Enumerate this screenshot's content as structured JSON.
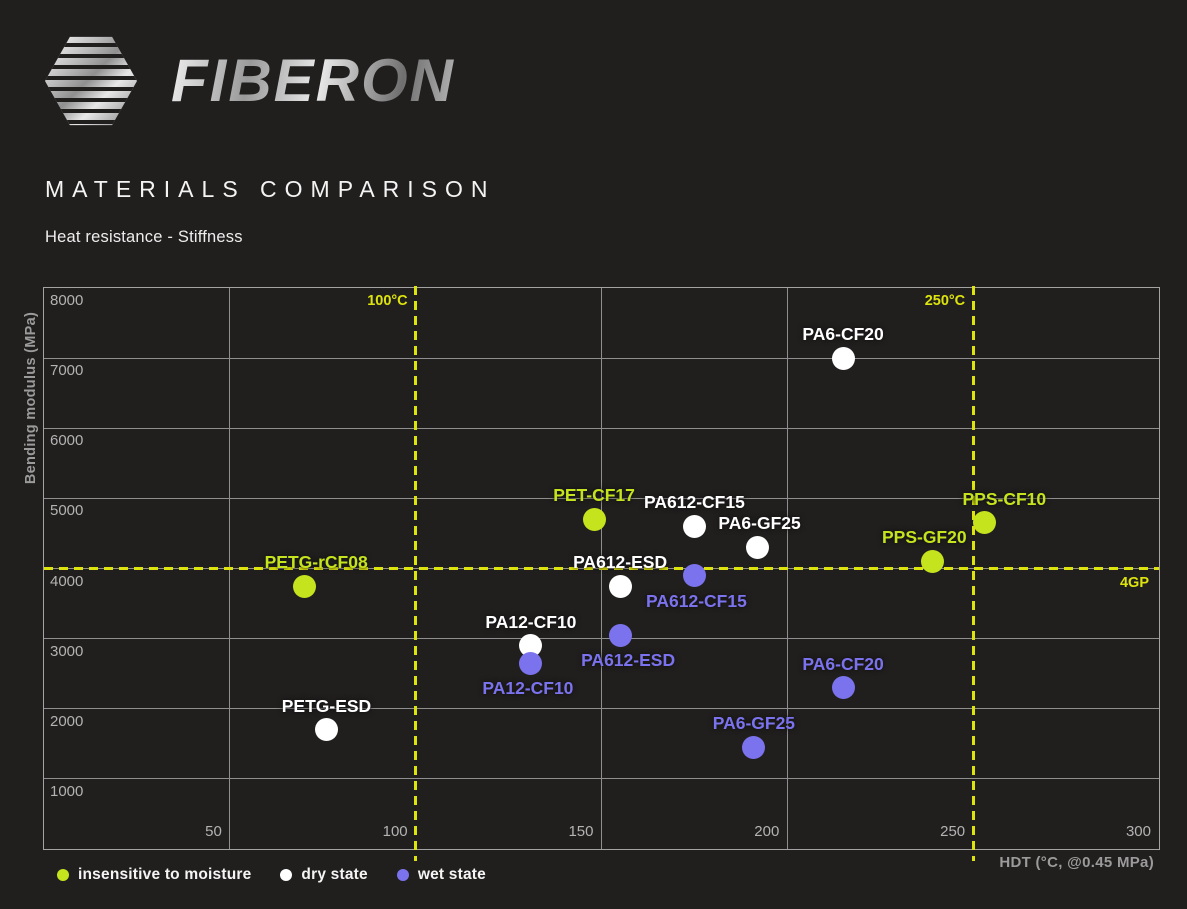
{
  "brand": {
    "name": "FIBERON"
  },
  "header": {
    "title": "MATERIALS COMPARISON",
    "subtitle": "Heat resistance - Stiffness"
  },
  "chart_data": {
    "type": "scatter",
    "title": "Heat resistance - Stiffness",
    "xlabel": "HDT (°C, @0.45 MPa)",
    "ylabel": "Bending modulus (MPa)",
    "xlim": [
      0,
      300
    ],
    "ylim": [
      0,
      8000
    ],
    "x_ticks": [
      50,
      100,
      150,
      200,
      250,
      300
    ],
    "y_ticks": [
      1000,
      2000,
      3000,
      4000,
      5000,
      6000,
      7000,
      8000
    ],
    "grid": true,
    "legend_position": "bottom-left",
    "guides": {
      "vertical": [
        {
          "value": 100,
          "label": "100°C"
        },
        {
          "value": 250,
          "label": "250°C"
        }
      ],
      "horizontal": [
        {
          "value": 4000,
          "label": "4GP"
        }
      ]
    },
    "series": [
      {
        "name": "insensitive to moisture",
        "color": "#c5e41d",
        "points": [
          {
            "label": "PETG-rCF08",
            "x": 70,
            "y": 3750,
            "label_side": "above",
            "label_dx": 12
          },
          {
            "label": "PET-CF17",
            "x": 148,
            "y": 4700,
            "label_side": "above",
            "label_dx": 0
          },
          {
            "label": "PPS-GF20",
            "x": 239,
            "y": 4100,
            "label_side": "above",
            "label_dx": -8
          },
          {
            "label": "PPS-CF10",
            "x": 253,
            "y": 4650,
            "label_side": "above",
            "label_dx": 20
          }
        ]
      },
      {
        "name": "dry state",
        "color": "#ffffff",
        "points": [
          {
            "label": "PETG-ESD",
            "x": 76,
            "y": 1700,
            "label_side": "above",
            "label_dx": 0
          },
          {
            "label": "PA12-CF10",
            "x": 131,
            "y": 2900,
            "label_side": "above",
            "label_dx": 0
          },
          {
            "label": "PA612-ESD",
            "x": 155,
            "y": 3750,
            "label_side": "above",
            "label_dx": 0
          },
          {
            "label": "PA612-CF15",
            "x": 175,
            "y": 4600,
            "label_side": "above",
            "label_dx": 0
          },
          {
            "label": "PA6-GF25",
            "x": 192,
            "y": 4300,
            "label_side": "above",
            "label_dx": 2
          },
          {
            "label": "PA6-CF20",
            "x": 215,
            "y": 7000,
            "label_side": "above",
            "label_dx": 0
          }
        ]
      },
      {
        "name": "wet state",
        "color": "#7b73ee",
        "points": [
          {
            "label": "PA12-CF10",
            "x": 131,
            "y": 2650,
            "label_side": "below",
            "label_dx": -3
          },
          {
            "label": "PA612-ESD",
            "x": 155,
            "y": 3050,
            "label_side": "below",
            "label_dx": 8
          },
          {
            "label": "PA612-CF15",
            "x": 175,
            "y": 3900,
            "label_side": "below",
            "label_dx": 2
          },
          {
            "label": "PA6-GF25",
            "x": 191,
            "y": 1450,
            "label_side": "above",
            "label_dx": 0
          },
          {
            "label": "PA6-CF20",
            "x": 215,
            "y": 2300,
            "label_side": "above",
            "label_dx": 0
          }
        ]
      }
    ]
  },
  "colors": {
    "background": "#211f1e",
    "grid": "#8f8f8f",
    "guide_yellow": "#dde30c",
    "accent_green": "#c5e41d",
    "accent_purple": "#7b73ee",
    "dry_white": "#ffffff"
  }
}
